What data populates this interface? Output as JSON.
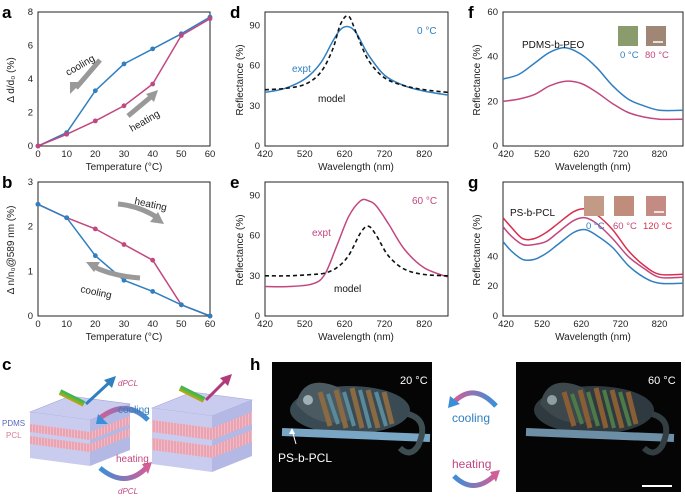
{
  "colors": {
    "blue": "#2f7fc1",
    "pink": "#c2477f",
    "model": "#111111",
    "pmma": "#f3b9c5",
    "pdms": "#c9ccee"
  },
  "panels": {
    "a": {
      "label": "a",
      "ylabel": "Δ d/d₀ (%)",
      "xlabel": "Temperature (°C)",
      "xticks": [
        "0",
        "10",
        "20",
        "30",
        "40",
        "50",
        "60"
      ],
      "yticks": [
        "0",
        "2",
        "4",
        "6",
        "8"
      ],
      "ann1": "cooling",
      "ann2": "heating"
    },
    "b": {
      "label": "b",
      "ylabel": "Δ n/n₀@589 nm (%)",
      "xlabel": "Temperature (°C)",
      "xticks": [
        "0",
        "10",
        "20",
        "30",
        "40",
        "50",
        "60"
      ],
      "yticks": [
        "0",
        "1",
        "2",
        "3"
      ],
      "ann1": "heating",
      "ann2": "cooling"
    },
    "c": {
      "label": "c",
      "top_lbl": "dPCL",
      "bot_lbl": "dPCL",
      "cooling": "cooling",
      "heating": "heating",
      "pdms": "PDMS",
      "pcl": "PCL"
    },
    "d": {
      "label": "d",
      "ylabel": "Reflectance (%)",
      "xlabel": "Wavelength (nm)",
      "xticks": [
        "420",
        "520",
        "620",
        "720",
        "820"
      ],
      "yticks": [
        "0",
        "30",
        "60",
        "90"
      ],
      "temp": "0 °C",
      "expt": "expt",
      "model": "model"
    },
    "e": {
      "label": "e",
      "ylabel": "Reflectance (%)",
      "xlabel": "Wavelength (nm)",
      "xticks": [
        "420",
        "520",
        "620",
        "720",
        "820"
      ],
      "yticks": [
        "0",
        "30",
        "60",
        "90"
      ],
      "temp": "60 °C",
      "expt": "expt",
      "model": "model"
    },
    "f": {
      "label": "f",
      "ylabel": "Reflectance (%)",
      "xlabel": "Wavelength (nm)",
      "xticks": [
        "420",
        "520",
        "620",
        "720",
        "820"
      ],
      "yticks": [
        "0",
        "20",
        "40",
        "60"
      ],
      "title": "PDMS-b-PEO",
      "t1": "0 °C",
      "t2": "80 °C"
    },
    "g": {
      "label": "g",
      "ylabel": "Reflectance (%)",
      "xlabel": "Wavelength (nm)",
      "xticks": [
        "420",
        "520",
        "620",
        "720",
        "820"
      ],
      "yticks": [
        "0",
        "20",
        "40"
      ],
      "title": "PS-b-PCL",
      "t1": "0 °C",
      "t2": "60 °C",
      "t3": "120 °C"
    },
    "h": {
      "label": "h",
      "temp1": "20 °C",
      "temp2": "60 °C",
      "cooling": "cooling",
      "heating": "heating",
      "material": "PS-b-PCL"
    }
  },
  "chart_data": [
    {
      "panel": "a",
      "type": "line",
      "x": [
        0,
        10,
        20,
        30,
        40,
        50,
        60
      ],
      "series": [
        {
          "name": "cooling",
          "color": "#2f7fc1",
          "values": [
            0,
            0.8,
            3.3,
            4.9,
            5.8,
            6.7,
            7.7
          ]
        },
        {
          "name": "heating",
          "color": "#c2477f",
          "values": [
            0,
            0.7,
            1.5,
            2.4,
            3.7,
            6.6,
            7.6
          ]
        }
      ],
      "xlim": [
        0,
        60
      ],
      "ylim": [
        0,
        8
      ],
      "xlabel": "Temperature (°C)",
      "ylabel": "Δ d/d₀ (%)"
    },
    {
      "panel": "b",
      "type": "line",
      "x": [
        0,
        10,
        20,
        30,
        40,
        50,
        60
      ],
      "series": [
        {
          "name": "heating",
          "color": "#c2477f",
          "values": [
            2.5,
            2.2,
            1.95,
            1.6,
            1.25,
            0.25,
            0
          ]
        },
        {
          "name": "cooling",
          "color": "#2f7fc1",
          "values": [
            2.5,
            2.2,
            1.35,
            0.8,
            0.55,
            0.25,
            0
          ]
        }
      ],
      "xlim": [
        0,
        60
      ],
      "ylim": [
        0,
        3
      ],
      "xlabel": "Temperature (°C)",
      "ylabel": "Δ n/n₀@589 nm (%)"
    },
    {
      "panel": "d",
      "type": "line",
      "series": [
        {
          "name": "expt",
          "color": "#2f7fc1",
          "x": [
            420,
            470,
            520,
            560,
            590,
            610,
            630,
            650,
            680,
            720,
            770,
            820,
            880
          ],
          "values": [
            40,
            43,
            50,
            62,
            78,
            87,
            89,
            84,
            68,
            53,
            45,
            41,
            38
          ]
        },
        {
          "name": "model",
          "color": "#111111",
          "dash": true,
          "x": [
            420,
            470,
            520,
            560,
            590,
            610,
            630,
            650,
            680,
            720,
            770,
            820,
            880
          ],
          "values": [
            42,
            43,
            46,
            55,
            72,
            91,
            97,
            84,
            64,
            51,
            45,
            42,
            40
          ]
        }
      ],
      "xlim": [
        420,
        880
      ],
      "ylim": [
        0,
        100
      ],
      "xlabel": "Wavelength (nm)",
      "ylabel": "Reflectance (%)"
    },
    {
      "panel": "e",
      "type": "line",
      "series": [
        {
          "name": "expt",
          "color": "#c2477f",
          "x": [
            420,
            480,
            540,
            570,
            600,
            630,
            660,
            680,
            700,
            730,
            770,
            820,
            880
          ],
          "values": [
            22,
            22,
            24,
            31,
            52,
            74,
            86,
            86,
            82,
            69,
            50,
            36,
            29
          ]
        },
        {
          "name": "model",
          "color": "#111111",
          "dash": true,
          "x": [
            420,
            480,
            540,
            570,
            600,
            630,
            660,
            680,
            700,
            730,
            770,
            820,
            880
          ],
          "values": [
            30,
            30,
            31,
            32,
            36,
            45,
            62,
            67,
            60,
            45,
            35,
            31,
            30
          ]
        }
      ],
      "xlim": [
        420,
        880
      ],
      "ylim": [
        0,
        100
      ],
      "xlabel": "Wavelength (nm)",
      "ylabel": "Reflectance (%)"
    },
    {
      "panel": "f",
      "type": "line",
      "series": [
        {
          "name": "0 °C",
          "color": "#2f7fc1",
          "x": [
            420,
            460,
            500,
            540,
            580,
            620,
            660,
            700,
            740,
            780,
            820,
            880
          ],
          "values": [
            30,
            32,
            37,
            42,
            44,
            41,
            35,
            27,
            21,
            18,
            16,
            16
          ]
        },
        {
          "name": "80 °C",
          "color": "#c2477f",
          "x": [
            420,
            460,
            500,
            540,
            580,
            620,
            660,
            700,
            740,
            780,
            820,
            880
          ],
          "values": [
            20,
            21,
            23,
            27,
            29,
            28,
            24,
            19,
            15,
            13,
            12,
            12
          ]
        }
      ],
      "xlim": [
        420,
        880
      ],
      "ylim": [
        0,
        60
      ],
      "xlabel": "Wavelength (nm)",
      "ylabel": "Reflectance (%)"
    },
    {
      "panel": "g",
      "type": "line",
      "series": [
        {
          "name": "0 °C",
          "color": "#2f7fc1",
          "x": [
            420,
            440,
            470,
            500,
            530,
            560,
            600,
            630,
            660,
            700,
            740,
            780,
            820,
            880
          ],
          "values": [
            25,
            22,
            19,
            19,
            21,
            24,
            28,
            29,
            27,
            23,
            17,
            13,
            11,
            11
          ]
        },
        {
          "name": "60 °C",
          "color": "#c2477f",
          "x": [
            420,
            440,
            470,
            500,
            530,
            560,
            600,
            630,
            660,
            700,
            740,
            780,
            820,
            880
          ],
          "values": [
            30,
            27,
            24,
            24,
            25,
            28,
            32,
            33,
            31,
            26,
            20,
            16,
            13,
            13
          ]
        },
        {
          "name": "120 °C",
          "color": "#d8304f",
          "x": [
            420,
            440,
            470,
            500,
            530,
            560,
            600,
            630,
            660,
            700,
            740,
            780,
            820,
            880
          ],
          "values": [
            33,
            30,
            26,
            26,
            28,
            31,
            35,
            36,
            34,
            29,
            22,
            17,
            14,
            14
          ]
        }
      ],
      "xlim": [
        420,
        880
      ],
      "ylim": [
        0,
        45
      ],
      "xlabel": "Wavelength (nm)",
      "ylabel": "Reflectance (%)"
    }
  ]
}
